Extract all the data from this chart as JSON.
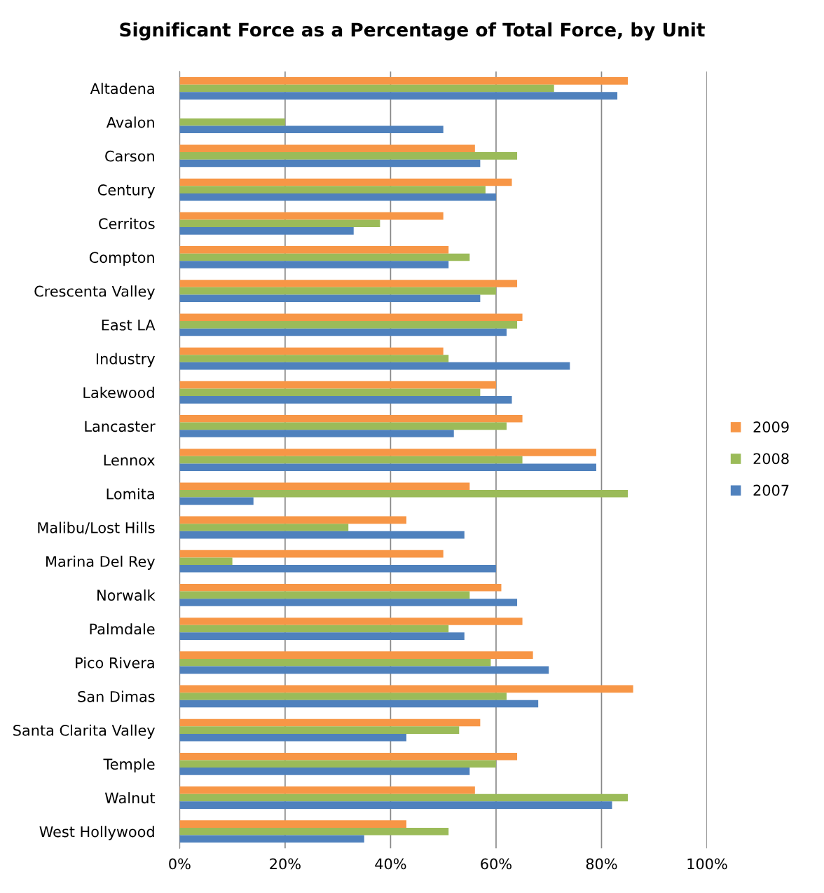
{
  "chart_data": {
    "type": "bar",
    "orientation": "horizontal",
    "title": "Significant Force as a Percentage of Total Force, by Unit",
    "categories": [
      "Altadena",
      "Avalon",
      "Carson",
      "Century",
      "Cerritos",
      "Compton",
      "Crescenta Valley",
      "East LA",
      "Industry",
      "Lakewood",
      "Lancaster",
      "Lennox",
      "Lomita",
      "Malibu/Lost Hills",
      "Marina Del Rey",
      "Norwalk",
      "Palmdale",
      "Pico Rivera",
      "San Dimas",
      "Santa Clarita Valley",
      "Temple",
      "Walnut",
      "West Hollywood"
    ],
    "series": [
      {
        "name": "2009",
        "color": "#f79646",
        "values": [
          85,
          null,
          56,
          63,
          50,
          51,
          64,
          65,
          50,
          60,
          65,
          79,
          55,
          43,
          50,
          61,
          65,
          67,
          86,
          57,
          64,
          56,
          43
        ]
      },
      {
        "name": "2008",
        "color": "#9bbb59",
        "values": [
          71,
          20,
          64,
          58,
          38,
          55,
          60,
          64,
          51,
          57,
          62,
          65,
          85,
          32,
          10,
          55,
          51,
          59,
          62,
          53,
          60,
          85,
          51
        ]
      },
      {
        "name": "2007",
        "color": "#4f81bd",
        "values": [
          83,
          50,
          57,
          60,
          33,
          51,
          57,
          62,
          74,
          63,
          52,
          79,
          14,
          54,
          60,
          64,
          54,
          70,
          68,
          43,
          55,
          82,
          35
        ]
      }
    ],
    "xlim": [
      0,
      100
    ],
    "xticks": [
      {
        "value": 0,
        "label": "0%"
      },
      {
        "value": 20,
        "label": "20%"
      },
      {
        "value": 40,
        "label": "40%"
      },
      {
        "value": 60,
        "label": "60%"
      },
      {
        "value": 80,
        "label": "80%"
      },
      {
        "value": 100,
        "label": "100%"
      }
    ],
    "grid": "x",
    "legend": "right"
  }
}
